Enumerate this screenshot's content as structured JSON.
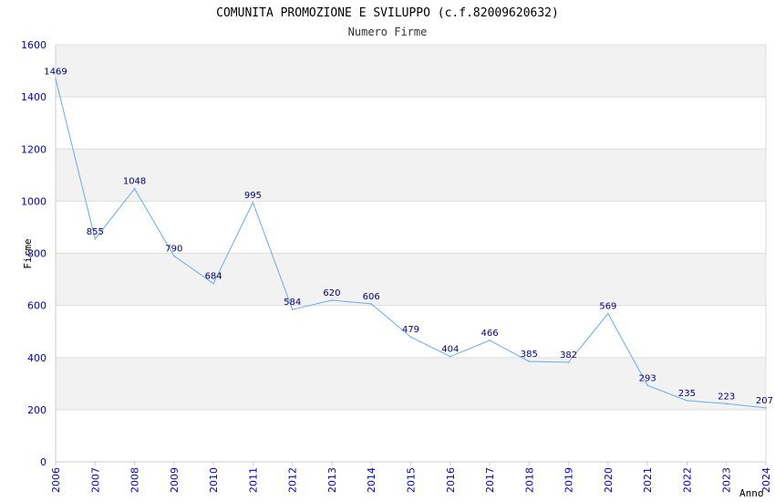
{
  "chart_data": {
    "type": "line",
    "title": "COMUNITA PROMOZIONE E SVILUPPO (c.f.82009620632)",
    "subtitle": "Numero Firme",
    "xlabel": "Anno",
    "ylabel": "Firme",
    "x": [
      "2006",
      "2007",
      "2008",
      "2009",
      "2010",
      "2011",
      "2012",
      "2013",
      "2014",
      "2015",
      "2016",
      "2017",
      "2018",
      "2019",
      "2020",
      "2021",
      "2022",
      "2023",
      "2024"
    ],
    "series": [
      {
        "values": [
          1469,
          855,
          1048,
          790,
          684,
          995,
          584,
          620,
          606,
          479,
          404,
          466,
          385,
          382,
          569,
          293,
          235,
          223,
          207
        ]
      }
    ],
    "yticks": [
      "0",
      "200",
      "400",
      "600",
      "800",
      "1000",
      "1200",
      "1400",
      "1600"
    ],
    "ylim": [
      0,
      1600
    ],
    "grid": true,
    "colors": {
      "line": "#6aaaf0",
      "band": "#f2f2f2",
      "grid": "#dddddd",
      "tick": "#0000cc",
      "label": "#000080"
    }
  }
}
